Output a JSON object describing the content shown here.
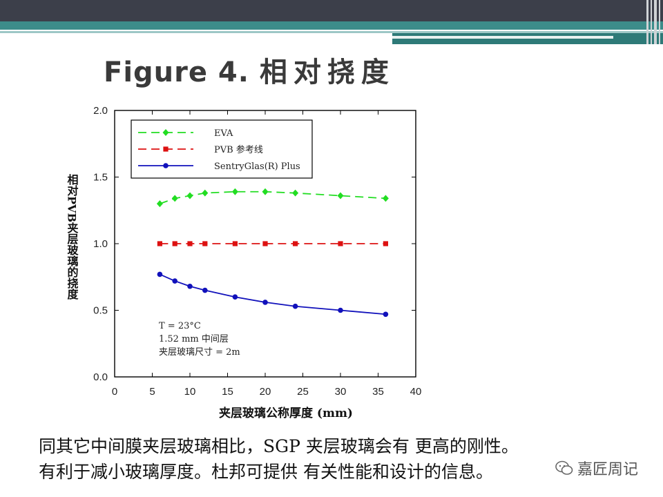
{
  "slide": {
    "title_en": "Figure 4.",
    "title_cn": "相对挠度",
    "caption_lines": [
      "同其它中间膜夹层玻璃相比，SGP 夹层玻璃会有 更高的刚性。",
      "有利于减小玻璃厚度。杜邦可提供 有关性能和设计的信息。"
    ],
    "watermark": "嘉匠周记",
    "colors": {
      "header_dark": "#3c3f4a",
      "header_teal": "#3c8c8a"
    }
  },
  "chart_data": {
    "type": "line",
    "title": "",
    "xlabel": "夹层玻璃公称厚度 (mm)",
    "ylabel": "相对PVB夹层玻璃的挠度",
    "xlim": [
      0,
      40
    ],
    "ylim": [
      0,
      2.0
    ],
    "x_ticks": [
      "0",
      "5",
      "10",
      "15",
      "20",
      "25",
      "30",
      "35",
      "40"
    ],
    "y_ticks": [
      "0.0",
      "0.5",
      "1.0",
      "1.5",
      "2.0"
    ],
    "grid": false,
    "legend_position": "top-left",
    "annotations": [
      "T = 23°C",
      "1.52 mm 中间层",
      "夹层玻璃尺寸 = 2m"
    ],
    "series": [
      {
        "name": "EVA",
        "color": "#22dd22",
        "style": "dashed",
        "marker": "diamond",
        "x": [
          6,
          8,
          10,
          12,
          16,
          20,
          24,
          30,
          36
        ],
        "y": [
          1.3,
          1.34,
          1.36,
          1.38,
          1.39,
          1.39,
          1.38,
          1.36,
          1.34
        ]
      },
      {
        "name": "PVB 参考线",
        "color": "#dd1111",
        "style": "dashed",
        "marker": "square",
        "x": [
          6,
          8,
          10,
          12,
          16,
          20,
          24,
          30,
          36
        ],
        "y": [
          1.0,
          1.0,
          1.0,
          1.0,
          1.0,
          1.0,
          1.0,
          1.0,
          1.0
        ]
      },
      {
        "name": "SentryGlas(R) Plus",
        "color": "#1111bb",
        "style": "solid",
        "marker": "circle",
        "x": [
          6,
          8,
          10,
          12,
          16,
          20,
          24,
          30,
          36
        ],
        "y": [
          0.77,
          0.72,
          0.68,
          0.65,
          0.6,
          0.56,
          0.53,
          0.5,
          0.47
        ]
      }
    ]
  }
}
